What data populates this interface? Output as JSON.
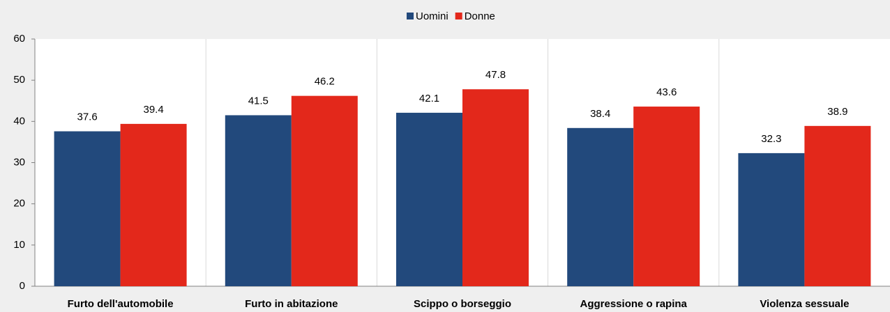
{
  "chart_data": {
    "type": "bar",
    "categories": [
      "Furto dell'automobile",
      "Furto in abitazione",
      "Scippo o borseggio",
      "Aggressione o rapina",
      "Violenza sessuale"
    ],
    "series": [
      {
        "name": "Uomini",
        "color": "#22497c",
        "values": [
          37.6,
          41.5,
          42.1,
          38.4,
          32.3
        ]
      },
      {
        "name": "Donne",
        "color": "#e3281b",
        "values": [
          39.4,
          46.2,
          47.8,
          43.6,
          38.9
        ]
      }
    ],
    "ylim": [
      0,
      60
    ],
    "yticks": [
      0,
      10,
      20,
      30,
      40,
      50,
      60
    ],
    "grid": false,
    "legend": "top"
  }
}
